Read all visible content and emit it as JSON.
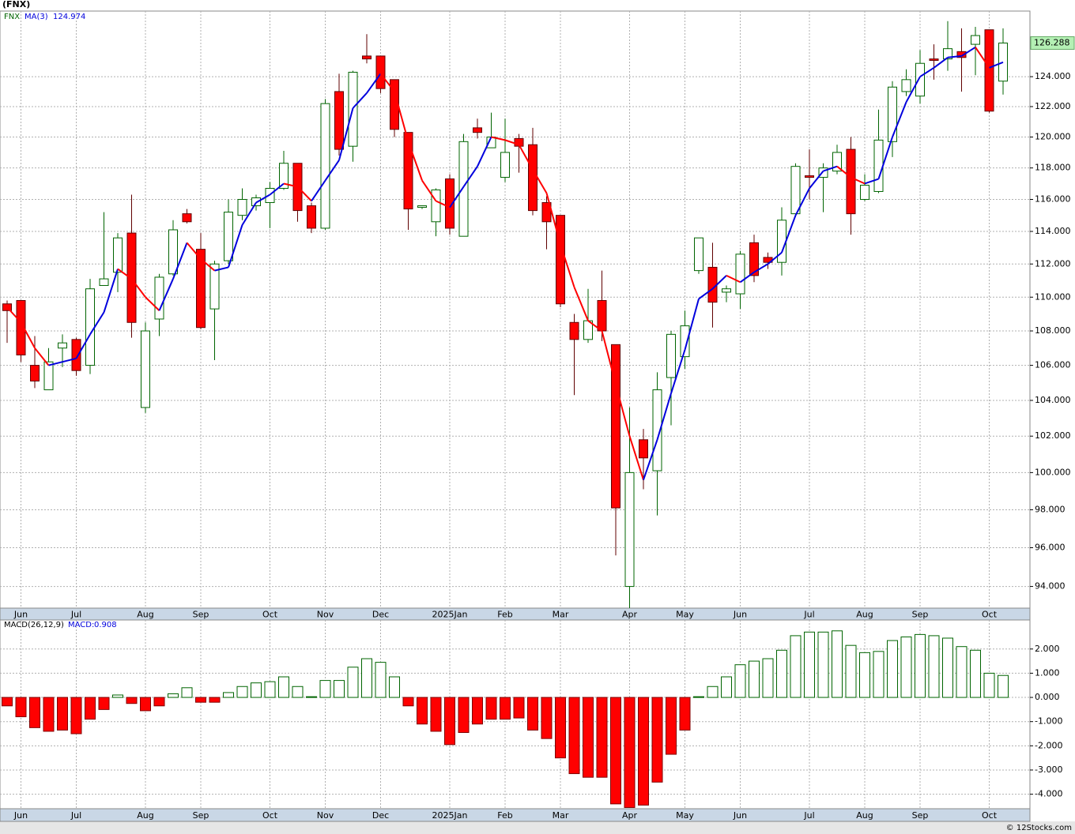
{
  "chart_data": [
    {
      "type": "candlestick",
      "title": "(FNX)",
      "categories": [
        null,
        "Jun",
        null,
        null,
        null,
        "Jul",
        null,
        null,
        null,
        null,
        "Aug",
        null,
        null,
        null,
        "Sep",
        null,
        null,
        null,
        null,
        "Oct",
        null,
        null,
        null,
        "Nov",
        null,
        null,
        null,
        "Dec",
        null,
        null,
        null,
        null,
        "2025Jan",
        null,
        null,
        null,
        "Feb",
        null,
        null,
        null,
        "Mar",
        null,
        null,
        null,
        null,
        "Apr",
        null,
        null,
        null,
        "May",
        null,
        null,
        null,
        "Jun",
        null,
        null,
        null,
        null,
        "Jul",
        null,
        null,
        null,
        "Aug",
        null,
        null,
        null,
        "Sep",
        null,
        null,
        null,
        null,
        "Oct",
        null
      ],
      "series": [
        {
          "name": "FNX",
          "up_color": "#006400",
          "down_color": "#ff0000",
          "open": [
            109.6,
            109.8,
            106.0,
            104.6,
            107.0,
            107.5,
            106.0,
            110.7,
            111.5,
            113.9,
            103.6,
            108.7,
            111.4,
            115.1,
            112.9,
            109.3,
            112.2,
            115.0,
            115.6,
            115.8,
            116.7,
            118.3,
            115.6,
            114.2,
            123.0,
            119.4,
            125.4,
            125.4,
            123.8,
            120.3,
            115.5,
            114.6,
            117.3,
            113.7,
            120.6,
            119.3,
            117.4,
            119.9,
            119.5,
            115.8,
            115.0,
            108.5,
            107.5,
            109.8,
            107.2,
            94.0,
            101.8,
            100.1,
            105.3,
            106.5,
            111.6,
            111.8,
            110.3,
            110.2,
            113.3,
            112.4,
            112.1,
            115.1,
            117.5,
            117.4,
            117.8,
            119.2,
            116.0,
            116.5,
            119.7,
            123.0,
            122.7,
            125.2,
            125.2,
            125.7,
            126.2,
            127.2,
            123.7
          ],
          "high": [
            109.8,
            109.8,
            107.7,
            107.0,
            107.8,
            107.6,
            111.1,
            115.2,
            113.9,
            116.3,
            108.5,
            111.4,
            114.7,
            115.4,
            113.9,
            112.2,
            116.0,
            116.7,
            116.3,
            117.1,
            119.1,
            118.3,
            115.8,
            122.5,
            124.2,
            124.4,
            126.9,
            125.4,
            123.8,
            120.3,
            115.6,
            116.7,
            117.6,
            120.2,
            121.2,
            121.6,
            121.2,
            120.2,
            120.6,
            116.2,
            115.0,
            109.0,
            110.5,
            111.6,
            107.2,
            103.6,
            102.4,
            105.6,
            108.0,
            109.2,
            113.6,
            113.3,
            110.7,
            112.8,
            113.8,
            112.7,
            115.5,
            118.3,
            119.2,
            118.3,
            119.5,
            120.0,
            117.6,
            121.8,
            123.7,
            124.5,
            125.8,
            126.2,
            127.8,
            127.3,
            127.4,
            127.2,
            127.3
          ],
          "low": [
            107.3,
            106.2,
            104.7,
            104.6,
            105.9,
            105.4,
            105.5,
            110.7,
            110.3,
            107.6,
            103.3,
            107.7,
            111.3,
            114.5,
            108.1,
            106.3,
            112.0,
            114.7,
            115.3,
            114.2,
            116.6,
            114.6,
            113.9,
            114.1,
            118.8,
            118.4,
            124.9,
            122.9,
            120.0,
            114.1,
            115.4,
            113.7,
            113.8,
            113.7,
            119.9,
            119.3,
            117.1,
            117.7,
            115.0,
            112.9,
            109.4,
            104.3,
            107.3,
            107.4,
            95.6,
            92.9,
            99.1,
            97.7,
            102.6,
            105.8,
            111.4,
            108.2,
            109.7,
            109.3,
            110.9,
            111.7,
            111.3,
            114.9,
            116.0,
            115.2,
            117.6,
            113.8,
            115.9,
            116.4,
            118.7,
            122.7,
            122.2,
            123.8,
            124.4,
            123.0,
            124.1,
            121.6,
            122.8
          ],
          "close": [
            109.2,
            106.6,
            105.1,
            106.2,
            107.3,
            105.7,
            110.5,
            111.1,
            113.6,
            108.5,
            108.0,
            111.2,
            114.1,
            114.6,
            108.2,
            112.0,
            115.2,
            116.0,
            116.1,
            116.7,
            118.3,
            115.3,
            114.2,
            122.2,
            119.2,
            124.3,
            125.2,
            123.2,
            120.5,
            115.4,
            115.6,
            116.6,
            114.2,
            119.7,
            120.3,
            120.0,
            119.0,
            119.4,
            115.3,
            114.6,
            109.6,
            107.5,
            108.6,
            108.0,
            98.1,
            100.0,
            100.8,
            104.6,
            107.8,
            108.3,
            113.6,
            109.7,
            110.5,
            112.6,
            111.3,
            112.1,
            114.7,
            118.1,
            117.4,
            118.0,
            119.0,
            115.1,
            116.9,
            119.8,
            123.3,
            123.8,
            124.9,
            125.1,
            125.9,
            125.3,
            126.8,
            121.7,
            126.288
          ]
        },
        {
          "name": "MA(3)",
          "rising_color": "#0000dd",
          "falling_color": "#ff0000",
          "values": [
            109.4,
            108.5,
            107.0,
            106.0,
            106.2,
            106.4,
            107.8,
            109.1,
            111.7,
            111.1,
            110.0,
            109.2,
            111.1,
            113.3,
            112.3,
            111.6,
            111.8,
            114.4,
            115.8,
            116.3,
            117.0,
            116.8,
            115.9,
            117.2,
            118.5,
            121.9,
            122.9,
            124.2,
            123.0,
            119.7,
            117.2,
            115.9,
            115.5,
            116.8,
            118.1,
            120.0,
            119.8,
            119.5,
            117.9,
            116.4,
            113.2,
            110.6,
            108.6,
            108.0,
            104.9,
            102.0,
            99.6,
            101.8,
            104.4,
            106.9,
            109.9,
            110.5,
            111.3,
            110.9,
            111.5,
            112.0,
            112.7,
            115.0,
            116.7,
            117.8,
            118.1,
            117.4,
            117.0,
            117.3,
            120.0,
            122.3,
            124.0,
            124.6,
            125.3,
            125.4,
            126.0,
            124.6,
            124.974
          ]
        }
      ],
      "log_scale": true,
      "grid": true,
      "last_price_color": "#b4f0b4",
      "ylim": [
        92.9,
        128.5
      ],
      "yticks": [
        {
          "value": 94,
          "label": "94.000"
        },
        {
          "value": 96,
          "label": "96.000"
        },
        {
          "value": 98,
          "label": "98.000"
        },
        {
          "value": 100,
          "label": "100.000"
        },
        {
          "value": 102,
          "label": "102.000"
        },
        {
          "value": 104,
          "label": "104.000"
        },
        {
          "value": 106,
          "label": "106.000"
        },
        {
          "value": 108,
          "label": "108.000"
        },
        {
          "value": 110,
          "label": "110.000"
        },
        {
          "value": 112,
          "label": "112.000"
        },
        {
          "value": 114,
          "label": "114.000"
        },
        {
          "value": 116,
          "label": "116.000"
        },
        {
          "value": 118,
          "label": "118.000"
        },
        {
          "value": 120,
          "label": "120.000"
        },
        {
          "value": 122,
          "label": "122.000"
        },
        {
          "value": 124,
          "label": "124.000"
        }
      ]
    },
    {
      "type": "bar",
      "title": "MACD(26,12,9)",
      "categories": [
        null,
        "Jun",
        null,
        null,
        null,
        "Jul",
        null,
        null,
        null,
        null,
        "Aug",
        null,
        null,
        null,
        "Sep",
        null,
        null,
        null,
        null,
        "Oct",
        null,
        null,
        null,
        "Nov",
        null,
        null,
        null,
        "Dec",
        null,
        null,
        null,
        null,
        "2025Jan",
        null,
        null,
        null,
        "Feb",
        null,
        null,
        null,
        "Mar",
        null,
        null,
        null,
        null,
        "Apr",
        null,
        null,
        null,
        "May",
        null,
        null,
        null,
        "Jun",
        null,
        null,
        null,
        null,
        "Jul",
        null,
        null,
        null,
        "Aug",
        null,
        null,
        null,
        "Sep",
        null,
        null,
        null,
        null,
        "Oct",
        null
      ],
      "series": [
        {
          "name": "MACD:",
          "positive_color": "#006400",
          "negative_color": "#ff0000",
          "values": [
            -0.35,
            -0.8,
            -1.25,
            -1.4,
            -1.35,
            -1.5,
            -0.9,
            -0.5,
            0.1,
            -0.25,
            -0.55,
            -0.35,
            0.15,
            0.4,
            -0.2,
            -0.2,
            0.2,
            0.45,
            0.6,
            0.65,
            0.85,
            0.45,
            0.03,
            0.7,
            0.7,
            1.25,
            1.6,
            1.45,
            0.85,
            -0.35,
            -1.1,
            -1.4,
            -1.95,
            -1.45,
            -1.1,
            -0.9,
            -0.9,
            -0.85,
            -1.35,
            -1.7,
            -2.5,
            -3.15,
            -3.3,
            -3.3,
            -4.4,
            -4.55,
            -4.45,
            -3.5,
            -2.35,
            -1.35,
            0.03,
            0.45,
            0.85,
            1.35,
            1.5,
            1.6,
            1.95,
            2.55,
            2.7,
            2.7,
            2.75,
            2.15,
            1.85,
            1.9,
            2.35,
            2.5,
            2.6,
            2.55,
            2.45,
            2.1,
            1.95,
            1.0,
            0.908
          ]
        }
      ],
      "grid": true,
      "ylim": [
        -4.6,
        3.2
      ],
      "yticks": [
        {
          "value": 2,
          "label": "2.000"
        },
        {
          "value": 1,
          "label": "1.000"
        },
        {
          "value": 0,
          "label": "0.000"
        },
        {
          "value": -1,
          "label": "-1.000"
        },
        {
          "value": -2,
          "label": "-2.000"
        },
        {
          "value": -3,
          "label": "-3.000"
        },
        {
          "value": -4,
          "label": "-4.000"
        }
      ]
    }
  ],
  "footer": "© 12Stocks.com"
}
